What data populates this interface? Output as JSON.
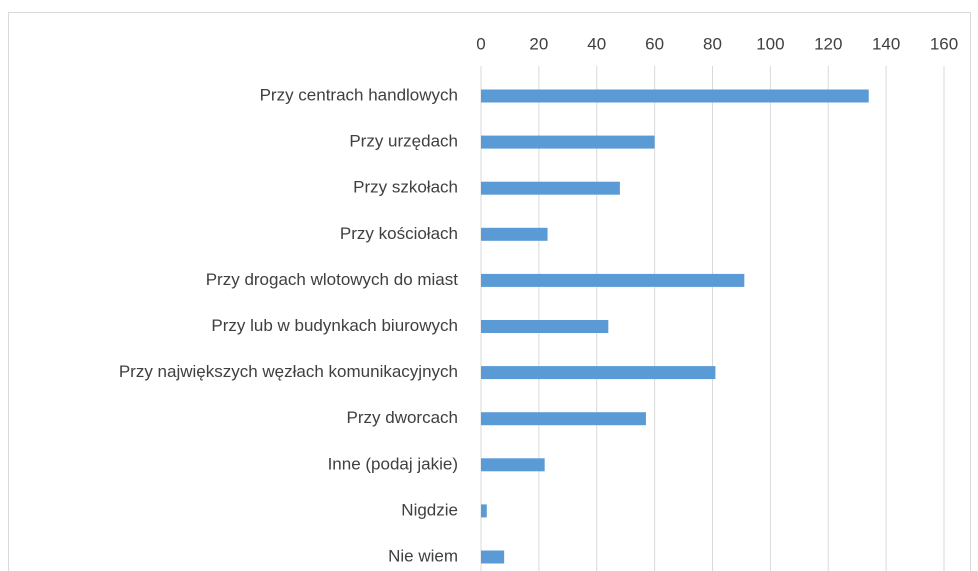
{
  "chart_data": {
    "type": "bar",
    "orientation": "horizontal",
    "categories": [
      "Przy centrach handlowych",
      "Przy urzędach",
      "Przy szkołach",
      "Przy kościołach",
      "Przy drogach wlotowych do miast",
      "Przy lub w budynkach biurowych",
      "Przy największych węzłach komunikacyjnych",
      "Przy dworcach",
      "Inne (podaj jakie)",
      "Nigdzie",
      "Nie wiem"
    ],
    "values": [
      134,
      60,
      48,
      23,
      91,
      44,
      81,
      57,
      22,
      2,
      8
    ],
    "color": "#5b9bd5",
    "xlim": [
      0,
      160
    ],
    "xticks": [
      0,
      20,
      40,
      60,
      80,
      100,
      120,
      140,
      160
    ],
    "grid": true
  }
}
